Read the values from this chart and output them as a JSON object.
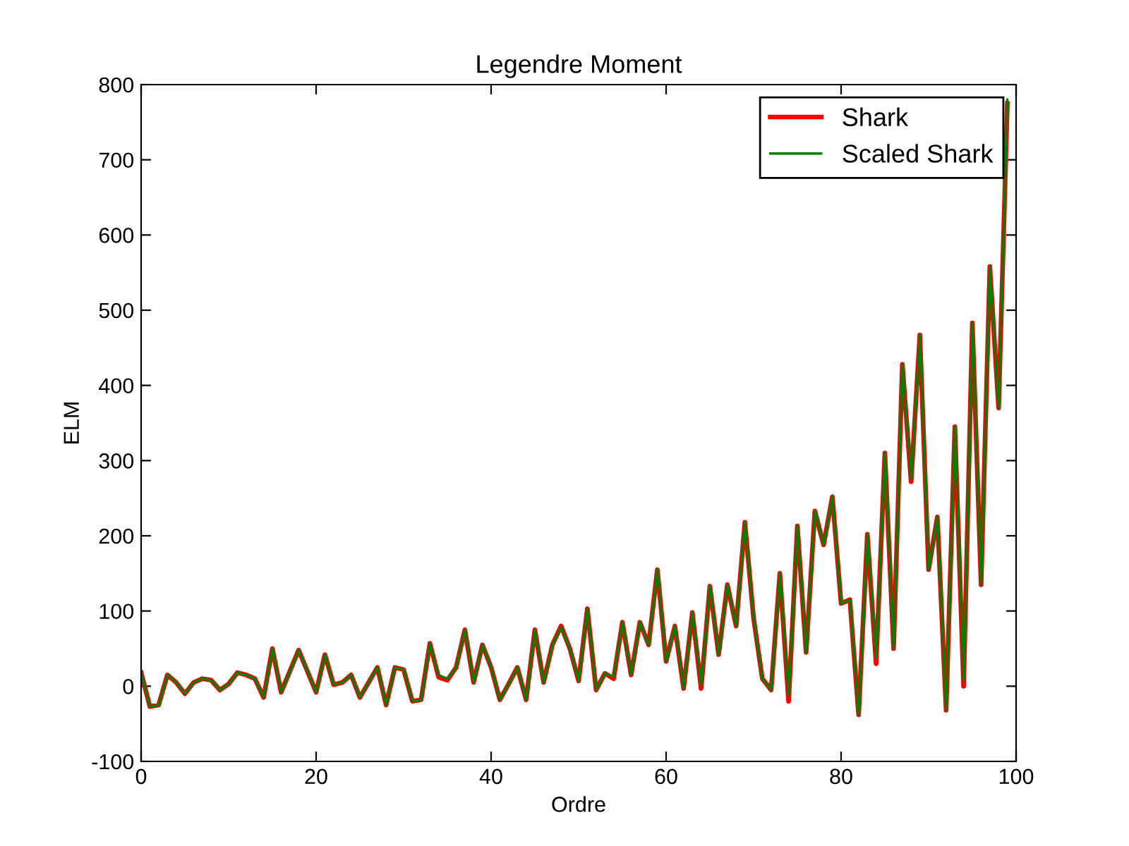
{
  "chart_data": {
    "type": "line",
    "title": "Legendre Moment",
    "xlabel": "Ordre",
    "ylabel": "ELM",
    "x": [
      0,
      1,
      2,
      3,
      4,
      5,
      6,
      7,
      8,
      9,
      10,
      11,
      12,
      13,
      14,
      15,
      16,
      17,
      18,
      19,
      20,
      21,
      22,
      23,
      24,
      25,
      26,
      27,
      28,
      29,
      30,
      31,
      32,
      33,
      34,
      35,
      36,
      37,
      38,
      39,
      40,
      41,
      42,
      43,
      44,
      45,
      46,
      47,
      48,
      49,
      50,
      51,
      52,
      53,
      54,
      55,
      56,
      57,
      58,
      59,
      60,
      61,
      62,
      63,
      64,
      65,
      66,
      67,
      68,
      69,
      70,
      71,
      72,
      73,
      74,
      75,
      76,
      77,
      78,
      79,
      80,
      81,
      82,
      83,
      84,
      85,
      86,
      87,
      88,
      89,
      90,
      91,
      92,
      93,
      94,
      95,
      96,
      97,
      98,
      99
    ],
    "series": [
      {
        "name": "Shark",
        "color": "#ff0000",
        "values": [
          18,
          -27,
          -25,
          15,
          5,
          -10,
          5,
          10,
          8,
          -5,
          3,
          18,
          15,
          10,
          -15,
          50,
          -8,
          20,
          48,
          20,
          -8,
          42,
          2,
          5,
          15,
          -15,
          5,
          25,
          -25,
          25,
          22,
          -20,
          -18,
          57,
          12,
          8,
          25,
          75,
          5,
          55,
          25,
          -18,
          3,
          25,
          -18,
          75,
          5,
          55,
          80,
          50,
          7,
          103,
          -5,
          17,
          10,
          85,
          15,
          85,
          55,
          155,
          33,
          80,
          -3,
          98,
          -3,
          133,
          42,
          135,
          80,
          218,
          90,
          10,
          -5,
          150,
          -20,
          213,
          45,
          233,
          188,
          252,
          110,
          115,
          -38,
          202,
          30,
          310,
          50,
          428,
          272,
          467,
          155,
          225,
          -32,
          345,
          0,
          483,
          135,
          558,
          370,
          775
        ]
      },
      {
        "name": "Scaled Shark",
        "color": "#008000",
        "values": [
          18,
          -27,
          -25,
          15,
          5,
          -10,
          5,
          10,
          8,
          -5,
          3,
          18,
          15,
          10,
          -15,
          50,
          -8,
          20,
          48,
          20,
          -8,
          42,
          2,
          5,
          15,
          -15,
          5,
          25,
          -25,
          25,
          22,
          -20,
          -18,
          57,
          15,
          10,
          25,
          75,
          5,
          55,
          25,
          -18,
          3,
          25,
          -18,
          75,
          5,
          55,
          78,
          50,
          7,
          103,
          -5,
          17,
          13,
          85,
          15,
          85,
          55,
          155,
          33,
          80,
          -3,
          98,
          2,
          133,
          42,
          135,
          80,
          218,
          90,
          10,
          -5,
          150,
          -12,
          213,
          45,
          233,
          188,
          252,
          110,
          115,
          -38,
          202,
          38,
          310,
          50,
          428,
          277,
          467,
          155,
          225,
          -32,
          345,
          8,
          483,
          135,
          558,
          370,
          780
        ]
      }
    ],
    "xlim": [
      0,
      100
    ],
    "ylim": [
      -100,
      800
    ],
    "xticks": [
      0,
      20,
      40,
      60,
      80,
      100
    ],
    "yticks": [
      -100,
      0,
      100,
      200,
      300,
      400,
      500,
      600,
      700,
      800
    ],
    "legend": "top right",
    "grid": false,
    "line_style": "solid",
    "marker": "none"
  }
}
